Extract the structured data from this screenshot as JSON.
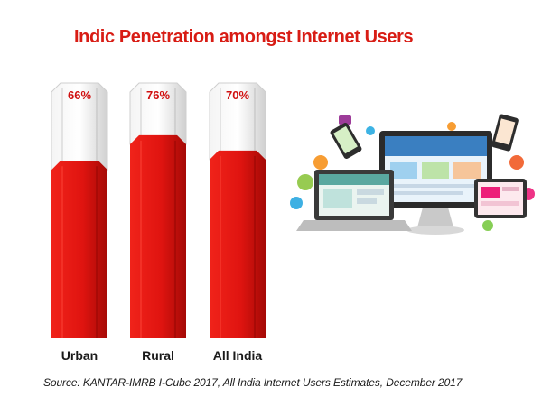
{
  "chart_data": {
    "type": "bar",
    "title": "Indic Penetration amongst Internet Users",
    "categories": [
      "Urban",
      "Rural",
      "All India"
    ],
    "values": [
      66,
      76,
      70
    ],
    "value_labels": [
      "66%",
      "76%",
      "70%"
    ],
    "ylim": [
      0,
      100
    ],
    "grid": false,
    "legend": "none",
    "colors": {
      "fill": "#e4140e",
      "empty": "#e6e6e6"
    }
  },
  "source": "Source: KANTAR-IMRB I-Cube 2017, All India Internet Users Estimates, December 2017",
  "illustration_icons": [
    "laptop-icon",
    "monitor-icon",
    "tablet-icon",
    "smartphone-icon",
    "cloud-icon",
    "gear-icon",
    "chat-icon",
    "lock-icon",
    "cart-icon",
    "envelope-icon"
  ]
}
